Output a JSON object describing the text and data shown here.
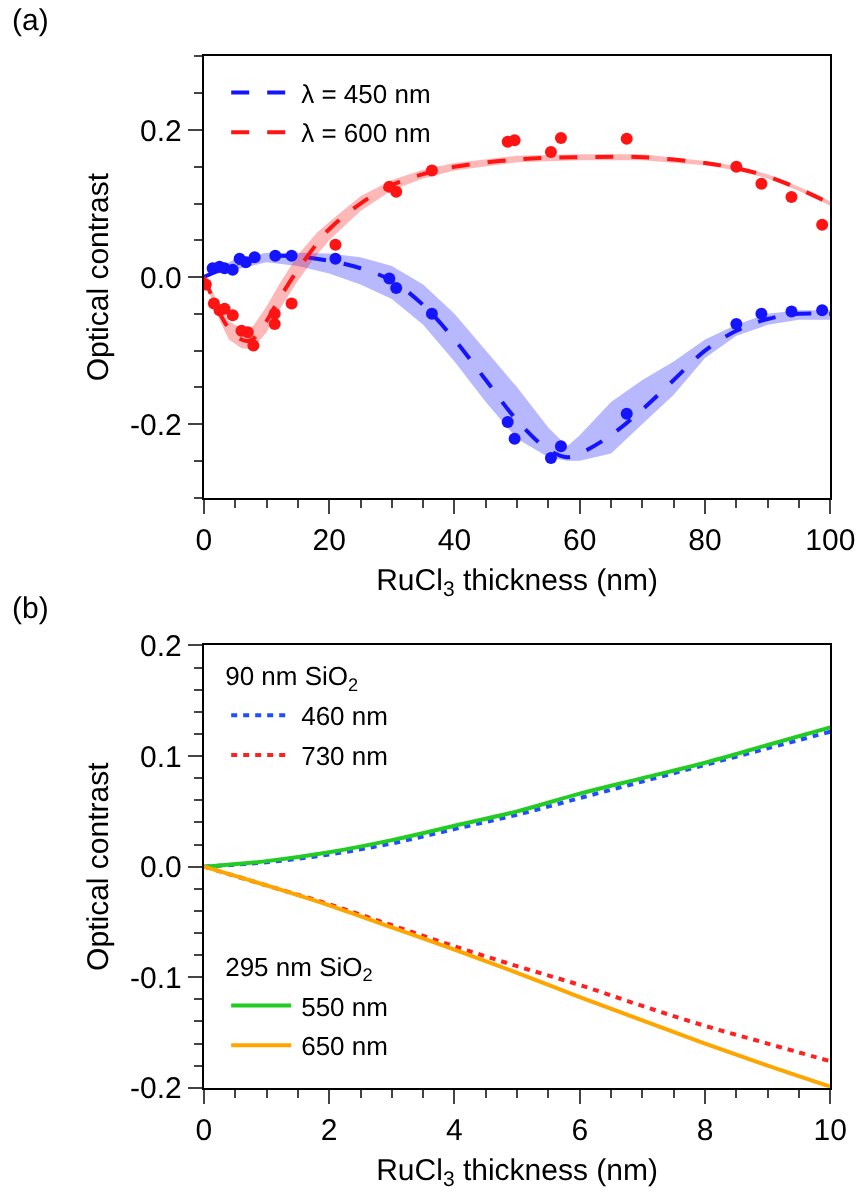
{
  "chart_data": [
    {
      "type": "line",
      "title": "(a)",
      "xlabel": "RuCl$_{3}$ thickness (nm)",
      "ylabel": "Optical contrast",
      "legend": "top left",
      "xlim": [
        0,
        100
      ],
      "ylim": [
        -0.3,
        0.3
      ],
      "xticks": [
        0,
        {
          "value": 5,
          "label": null
        },
        {
          "value": 10,
          "label": null
        },
        {
          "value": 15,
          "label": null
        },
        20,
        {
          "value": 25,
          "label": null
        },
        {
          "value": 30,
          "label": null
        },
        {
          "value": 35,
          "label": null
        },
        40,
        {
          "value": 45,
          "label": null
        },
        {
          "value": 50,
          "label": null
        },
        {
          "value": 55,
          "label": null
        },
        60,
        {
          "value": 65,
          "label": null
        },
        {
          "value": 70,
          "label": null
        },
        {
          "value": 75,
          "label": null
        },
        80,
        {
          "value": 85,
          "label": null
        },
        {
          "value": 90,
          "label": null
        },
        {
          "value": 95,
          "label": null
        },
        100
      ],
      "yticks": [
        {
          "value": -0.3,
          "label": null
        },
        {
          "value": -0.25,
          "label": null
        },
        -0.2,
        {
          "value": -0.15,
          "label": null
        },
        {
          "value": -0.1,
          "label": null
        },
        {
          "value": -0.05,
          "label": null
        },
        {
          "value": 0,
          "label": "0.0"
        },
        {
          "value": 0.05,
          "label": null
        },
        {
          "value": 0.1,
          "label": null
        },
        {
          "value": 0.15,
          "label": null
        },
        0.2,
        {
          "value": 0.25,
          "label": null
        },
        {
          "value": 0.3,
          "label": null
        }
      ],
      "series": [
        {
          "name": "λ = 450 nm",
          "type": "line",
          "line_style": "dashed",
          "marker": "none",
          "color": "#1414ff",
          "x": [
            0,
            5,
            10,
            15,
            20,
            25,
            30,
            35,
            40,
            45,
            50,
            55,
            58,
            60,
            65,
            70,
            75,
            80,
            85,
            90,
            95,
            100
          ],
          "values": [
            0,
            0.018,
            0.028,
            0.028,
            0.022,
            0.012,
            -0.005,
            -0.038,
            -0.085,
            -0.14,
            -0.195,
            -0.235,
            -0.245,
            -0.24,
            -0.215,
            -0.18,
            -0.14,
            -0.1,
            -0.073,
            -0.057,
            -0.05,
            -0.05
          ],
          "lower": [
            0,
            0.01,
            0.02,
            0.015,
            0.005,
            -0.01,
            -0.03,
            -0.065,
            -0.115,
            -0.17,
            -0.22,
            -0.245,
            -0.25,
            -0.25,
            -0.24,
            -0.2,
            -0.16,
            -0.11,
            -0.08,
            -0.065,
            -0.058,
            -0.058
          ],
          "upper": [
            0,
            0.025,
            0.033,
            0.033,
            0.032,
            0.027,
            0.015,
            -0.01,
            -0.05,
            -0.1,
            -0.15,
            -0.205,
            -0.23,
            -0.215,
            -0.17,
            -0.14,
            -0.115,
            -0.085,
            -0.065,
            -0.05,
            -0.045,
            -0.045
          ]
        },
        {
          "name": "λ = 600 nm",
          "type": "line",
          "line_style": "dashed",
          "marker": "none",
          "color": "#ff1414",
          "x": [
            0,
            2,
            4,
            6,
            7,
            8,
            10,
            12,
            15,
            18,
            20,
            25,
            30,
            35,
            40,
            50,
            60,
            70,
            80,
            85,
            90,
            95,
            100
          ],
          "values": [
            0,
            -0.04,
            -0.07,
            -0.085,
            -0.087,
            -0.083,
            -0.06,
            -0.03,
            0.01,
            0.045,
            0.065,
            0.1,
            0.125,
            0.14,
            0.15,
            0.16,
            0.163,
            0.163,
            0.155,
            0.148,
            0.137,
            0.12,
            0.1
          ],
          "lower": [
            0,
            -0.05,
            -0.085,
            -0.097,
            -0.098,
            -0.095,
            -0.075,
            -0.045,
            -0.005,
            0.03,
            0.05,
            0.09,
            0.118,
            0.134,
            0.145,
            0.156,
            0.159,
            0.159,
            0.152,
            0.145,
            0.134,
            0.117,
            0.097
          ],
          "upper": [
            0,
            -0.03,
            -0.06,
            -0.07,
            -0.072,
            -0.065,
            -0.04,
            -0.01,
            0.03,
            0.06,
            0.075,
            0.11,
            0.132,
            0.146,
            0.155,
            0.165,
            0.167,
            0.167,
            0.158,
            0.151,
            0.14,
            0.123,
            0.103
          ]
        },
        {
          "type": "scatter",
          "marker": "circle",
          "color": "#1414ff",
          "x": [
            1.4,
            2.5,
            3.3,
            4.6,
            5.7,
            6.7,
            8.1,
            11.4,
            14,
            21,
            29.6,
            30.7,
            36.4,
            48.5,
            49.6,
            55.4,
            57,
            67.5,
            85,
            89,
            93.8,
            98.7
          ],
          "values": [
            0.012,
            0.014,
            0.012,
            0.01,
            0.025,
            0.02,
            0.027,
            0.029,
            0.029,
            0.025,
            -0.002,
            -0.015,
            -0.05,
            -0.197,
            -0.22,
            -0.246,
            -0.23,
            -0.186,
            -0.064,
            -0.05,
            -0.047,
            -0.045
          ]
        },
        {
          "type": "scatter",
          "marker": "circle",
          "color": "#ff1414",
          "x": [
            0.3,
            1.6,
            2.5,
            3.3,
            4.6,
            6,
            7,
            7.9,
            11.3,
            11.3,
            14,
            21,
            29.6,
            30.7,
            36.4,
            48.5,
            49.6,
            55.4,
            57,
            67.5,
            85,
            89,
            93.8,
            98.7
          ],
          "values": [
            -0.01,
            -0.036,
            -0.045,
            -0.043,
            -0.052,
            -0.073,
            -0.075,
            -0.093,
            -0.05,
            -0.064,
            -0.036,
            0.044,
            0.123,
            0.116,
            0.145,
            0.184,
            0.186,
            0.17,
            0.189,
            0.188,
            0.15,
            0.127,
            0.109,
            0.071
          ]
        }
      ]
    },
    {
      "type": "line",
      "title": "(b)",
      "xlabel": "RuCl$_{3}$ thickness (nm)",
      "ylabel": "Optical contrast",
      "legend": "left",
      "annotations": [
        "90 nm SiO$_{2}$",
        "295 nm SiO$_{2}$"
      ],
      "xlim": [
        0,
        10
      ],
      "ylim": [
        -0.2,
        0.2
      ],
      "xticks": [
        0,
        {
          "value": 0.5,
          "label": null
        },
        {
          "value": 1,
          "label": null
        },
        {
          "value": 1.5,
          "label": null
        },
        2,
        {
          "value": 2.5,
          "label": null
        },
        {
          "value": 3,
          "label": null
        },
        {
          "value": 3.5,
          "label": null
        },
        4,
        {
          "value": 4.5,
          "label": null
        },
        {
          "value": 5,
          "label": null
        },
        {
          "value": 5.5,
          "label": null
        },
        6,
        {
          "value": 6.5,
          "label": null
        },
        {
          "value": 7,
          "label": null
        },
        {
          "value": 7.5,
          "label": null
        },
        8,
        {
          "value": 8.5,
          "label": null
        },
        {
          "value": 9,
          "label": null
        },
        {
          "value": 9.5,
          "label": null
        },
        10
      ],
      "yticks": [
        -0.2,
        {
          "value": -0.18,
          "label": null
        },
        {
          "value": -0.16,
          "label": null
        },
        {
          "value": -0.14,
          "label": null
        },
        {
          "value": -0.12,
          "label": null
        },
        -0.1,
        {
          "value": -0.08,
          "label": null
        },
        {
          "value": -0.06,
          "label": null
        },
        {
          "value": -0.04,
          "label": null
        },
        {
          "value": -0.02,
          "label": null
        },
        {
          "value": 0,
          "label": "0.0"
        },
        {
          "value": 0.02,
          "label": null
        },
        {
          "value": 0.04,
          "label": null
        },
        {
          "value": 0.06,
          "label": null
        },
        {
          "value": 0.08,
          "label": null
        },
        0.1,
        {
          "value": 0.12,
          "label": null
        },
        {
          "value": 0.14,
          "label": null
        },
        {
          "value": 0.16,
          "label": null
        },
        {
          "value": 0.18,
          "label": null
        },
        0.2
      ],
      "x": [
        0,
        1,
        2,
        3,
        4,
        5,
        6,
        7,
        8,
        9,
        10
      ],
      "series": [
        {
          "name": "460 nm",
          "line_style": "dotted",
          "color": "#1f4fff",
          "values": [
            0,
            0.004,
            0.011,
            0.021,
            0.034,
            0.047,
            0.062,
            0.077,
            0.092,
            0.107,
            0.122
          ]
        },
        {
          "name": "730 nm",
          "line_style": "dotted",
          "color": "#ff2020",
          "values": [
            0,
            -0.017,
            -0.034,
            -0.053,
            -0.072,
            -0.09,
            -0.107,
            -0.126,
            -0.144,
            -0.16,
            -0.176
          ]
        },
        {
          "name": "550 nm",
          "line_style": "solid",
          "color": "#22cc22",
          "values": [
            0,
            0.005,
            0.013,
            0.024,
            0.037,
            0.05,
            0.066,
            0.08,
            0.094,
            0.11,
            0.126
          ]
        },
        {
          "name": "650 nm",
          "line_style": "solid",
          "color": "#ffa500",
          "values": [
            0,
            -0.017,
            -0.035,
            -0.055,
            -0.075,
            -0.096,
            -0.118,
            -0.139,
            -0.16,
            -0.18,
            -0.199
          ]
        }
      ]
    }
  ]
}
